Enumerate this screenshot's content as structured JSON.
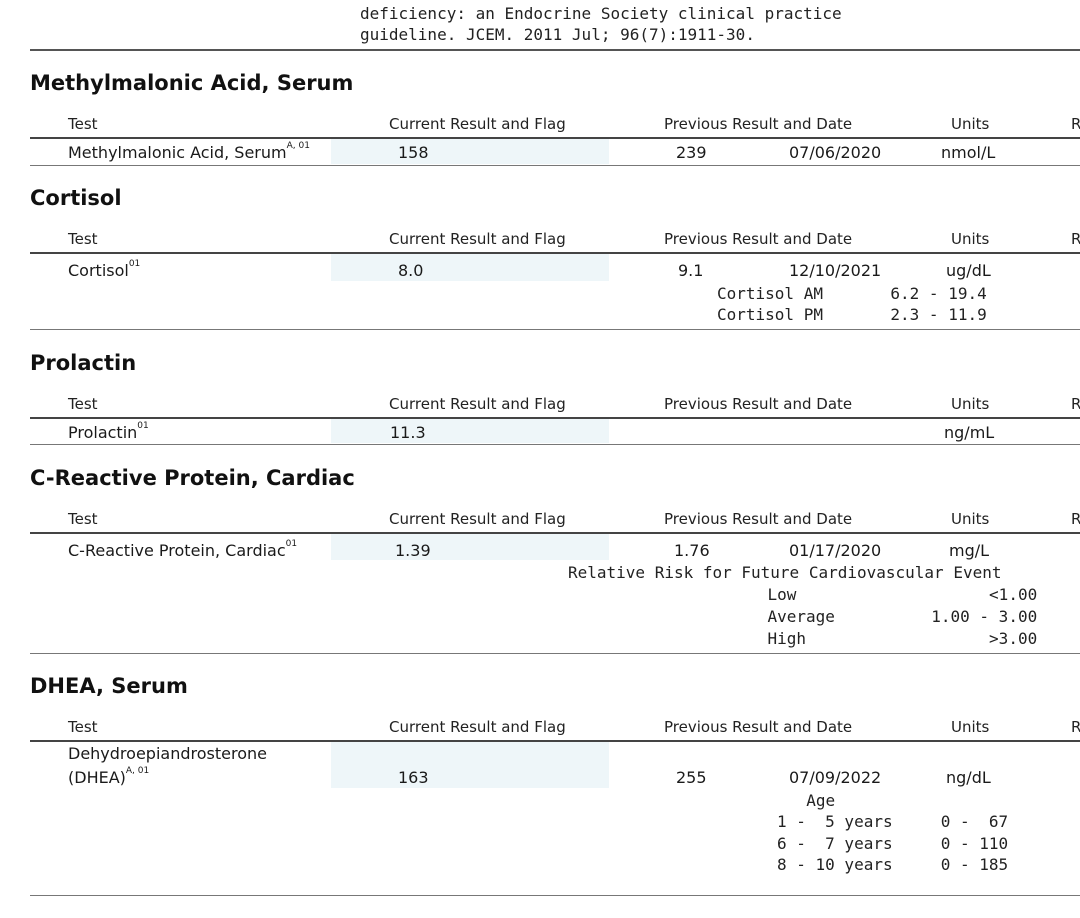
{
  "intro": {
    "line1": "deficiency: an Endocrine Society clinical practice",
    "line2": "guideline. JCEM. 2011 Jul; 96(7):1911-30."
  },
  "columns": {
    "test": "Test",
    "current": "Current Result and Flag",
    "previous": "Previous Result and Date",
    "units": "Units",
    "ref": "R"
  },
  "sections": {
    "mma": {
      "title": "Methylmalonic Acid, Serum",
      "test": "Methylmalonic Acid, Serum",
      "sup": "A, 01",
      "current": "158",
      "prev_value": "239",
      "prev_date": "07/06/2020",
      "units": "nmol/L"
    },
    "cortisol": {
      "title": "Cortisol",
      "test": "Cortisol",
      "sup": "01",
      "current": "8.0",
      "prev_value": "9.1",
      "prev_date": "12/10/2021",
      "units": "ug/dL",
      "ref_lines": [
        "Cortisol AM       6.2 - 19.4",
        "Cortisol PM       2.3 - 11.9"
      ]
    },
    "prolactin": {
      "title": "Prolactin",
      "test": "Prolactin",
      "sup": "01",
      "current": "11.3",
      "units": "ng/mL"
    },
    "crp": {
      "title": "C-Reactive Protein, Cardiac",
      "test": "C-Reactive Protein, Cardiac",
      "sup": "01",
      "current": "1.39",
      "prev_value": "1.76",
      "prev_date": "01/17/2020",
      "units": "mg/L",
      "ref_lines": [
        "Relative Risk for Future Cardiovascular Event",
        "               Low                    <1.00",
        "               Average          1.00 - 3.00",
        "               High                   >3.00"
      ]
    },
    "dhea": {
      "title": "DHEA, Serum",
      "test_line1": "Dehydroepiandrosterone",
      "test_line2": "(DHEA)",
      "sup": "A, 01",
      "current": "163",
      "prev_value": "255",
      "prev_date": "07/09/2022",
      "units": "ng/dL",
      "ref_lines": [
        "  Age",
        "1 -  5 years     0 -  67",
        "6 -  7 years     0 - 110",
        "8 - 10 years     0 - 185"
      ]
    }
  }
}
